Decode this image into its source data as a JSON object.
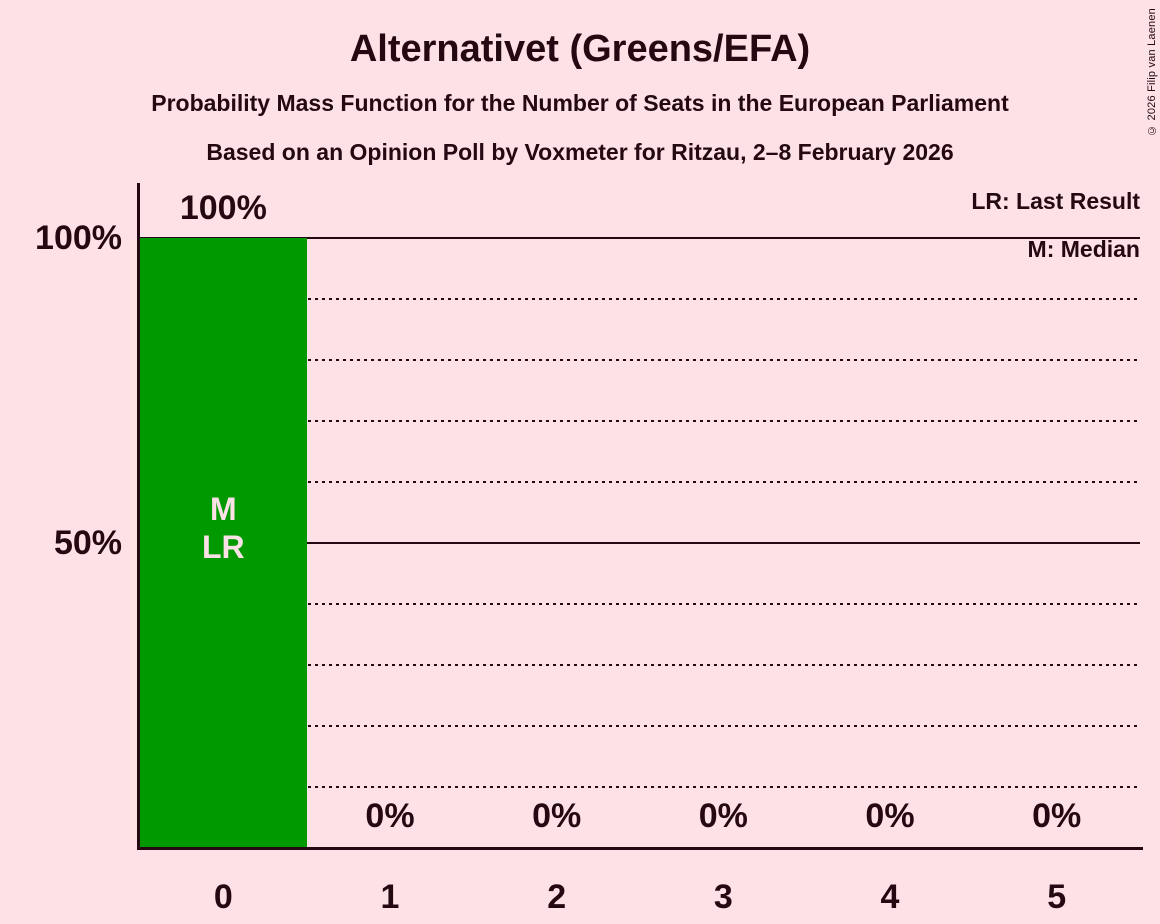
{
  "page": {
    "background_color": "#FCE2E7",
    "text_color": "#240912"
  },
  "copyright": "© 2026 Filip van Laenen",
  "chart_data": {
    "type": "bar",
    "title": "Alternativet (Greens/EFA)",
    "subtitle_line1": "Probability Mass Function for the Number of Seats in the European Parliament",
    "subtitle_line2": "Based on an Opinion Poll by Voxmeter for Ritzau, 2–8 February 2026",
    "xlabel": "",
    "ylabel": "",
    "categories": [
      "0",
      "1",
      "2",
      "3",
      "4",
      "5"
    ],
    "values": [
      100,
      0,
      0,
      0,
      0,
      0
    ],
    "value_labels": [
      "100%",
      "0%",
      "0%",
      "0%",
      "0%",
      "0%"
    ],
    "ylim": [
      0,
      100
    ],
    "ytick_labels": [
      {
        "value": 100,
        "label": "100%"
      },
      {
        "value": 50,
        "label": "50%"
      }
    ],
    "solid_gridlines": [
      100,
      50
    ],
    "dotted_gridlines": [
      90,
      80,
      70,
      60,
      40,
      30,
      20,
      10
    ],
    "grid": "horizontal",
    "legend_position": "top-right",
    "legend": [
      "LR: Last Result",
      "M: Median"
    ],
    "bar_annotations": {
      "category": "0",
      "lines": [
        "M",
        "LR"
      ]
    },
    "colors": {
      "bar": "#009900",
      "bar_annotation_text": "#FCE2E7",
      "gridline": "#240912"
    }
  }
}
